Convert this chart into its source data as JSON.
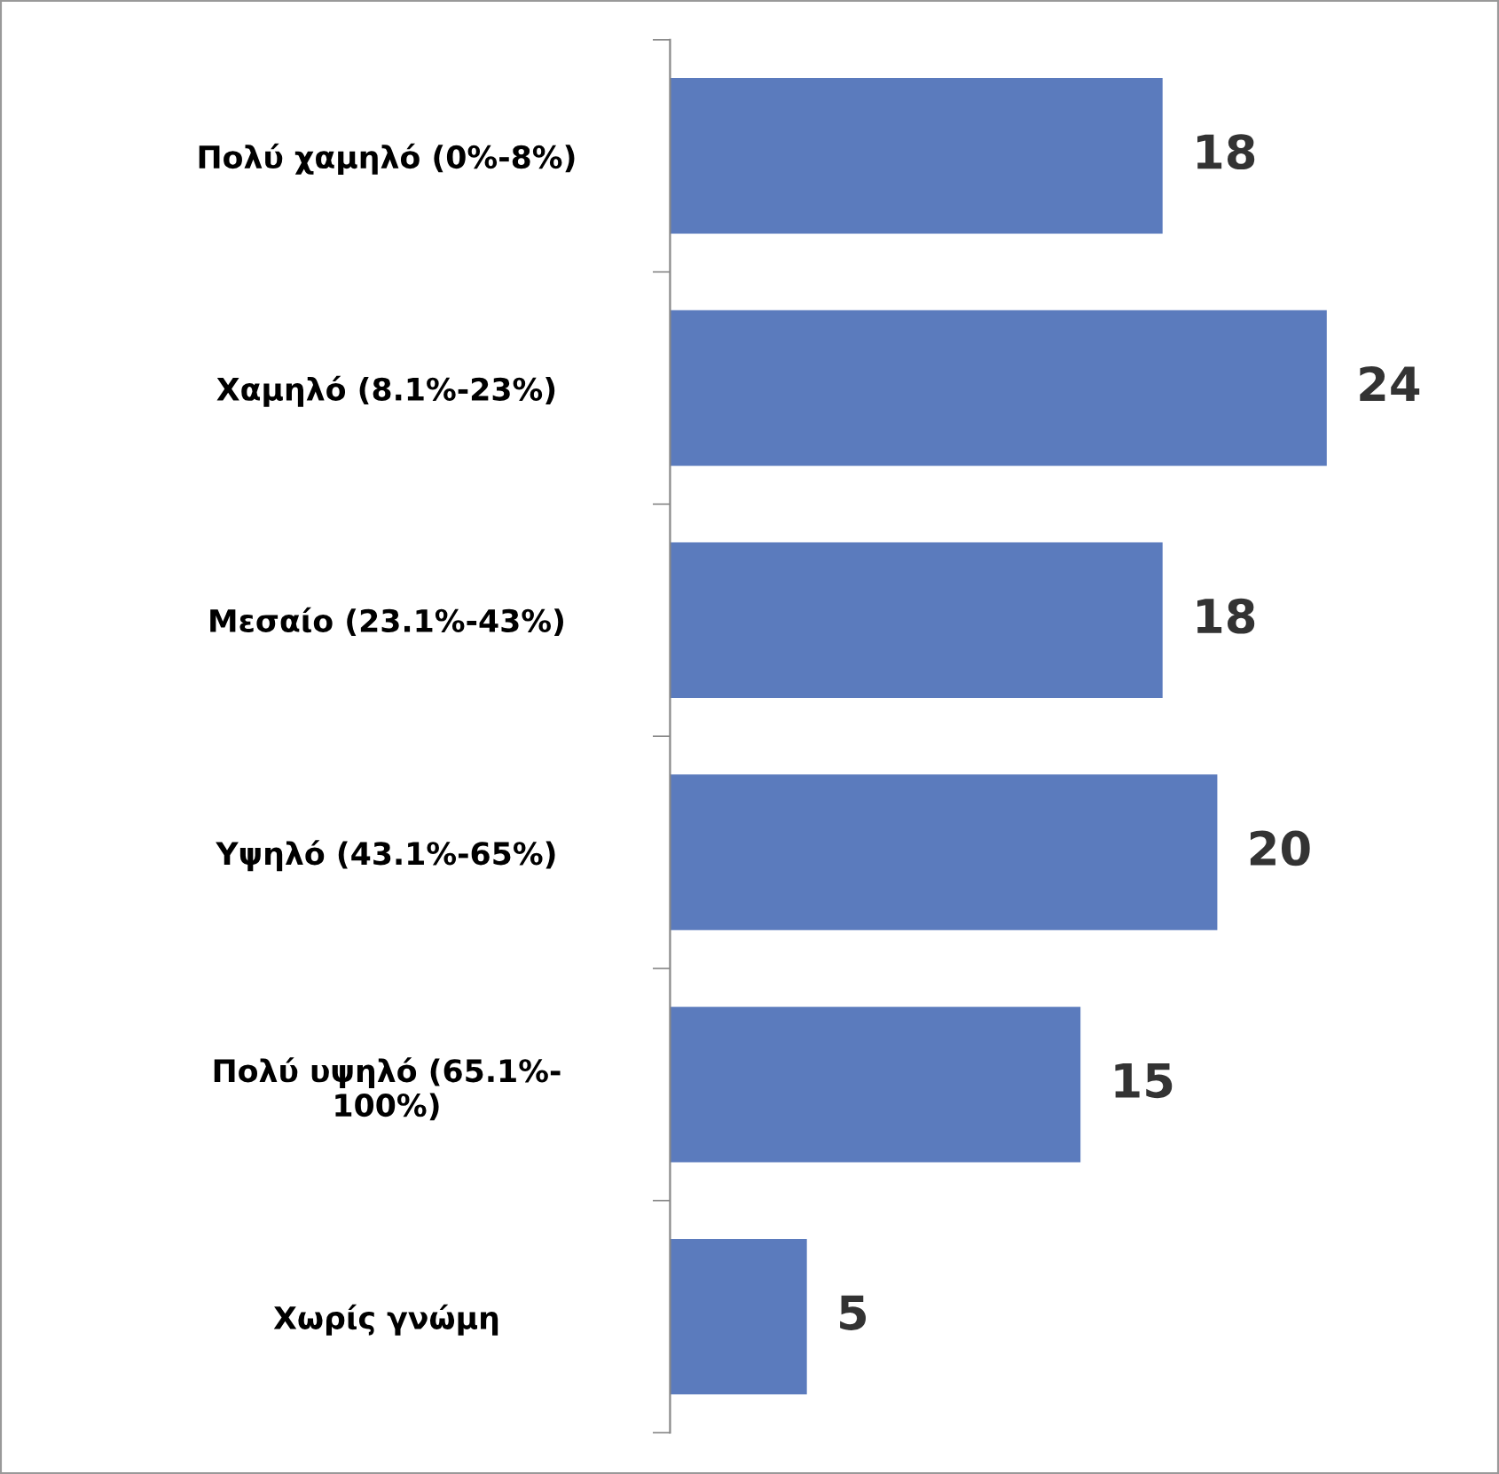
{
  "chart_data": {
    "type": "bar",
    "orientation": "horizontal",
    "categories": [
      "Πολύ χαμηλό (0%-8%)",
      "Χαμηλό (8.1%-23%)",
      "Μεσαίο (23.1%-43%)",
      "Υψηλό (43.1%-65%)",
      "Πολύ υψηλό (65.1%-\n100%)",
      "Χωρίς γνώμη"
    ],
    "values": [
      18,
      24,
      18,
      20,
      15,
      5
    ],
    "color": "#5b7bbd",
    "tick_labels": "y",
    "data_labels": true,
    "grid": false,
    "legend": false
  }
}
